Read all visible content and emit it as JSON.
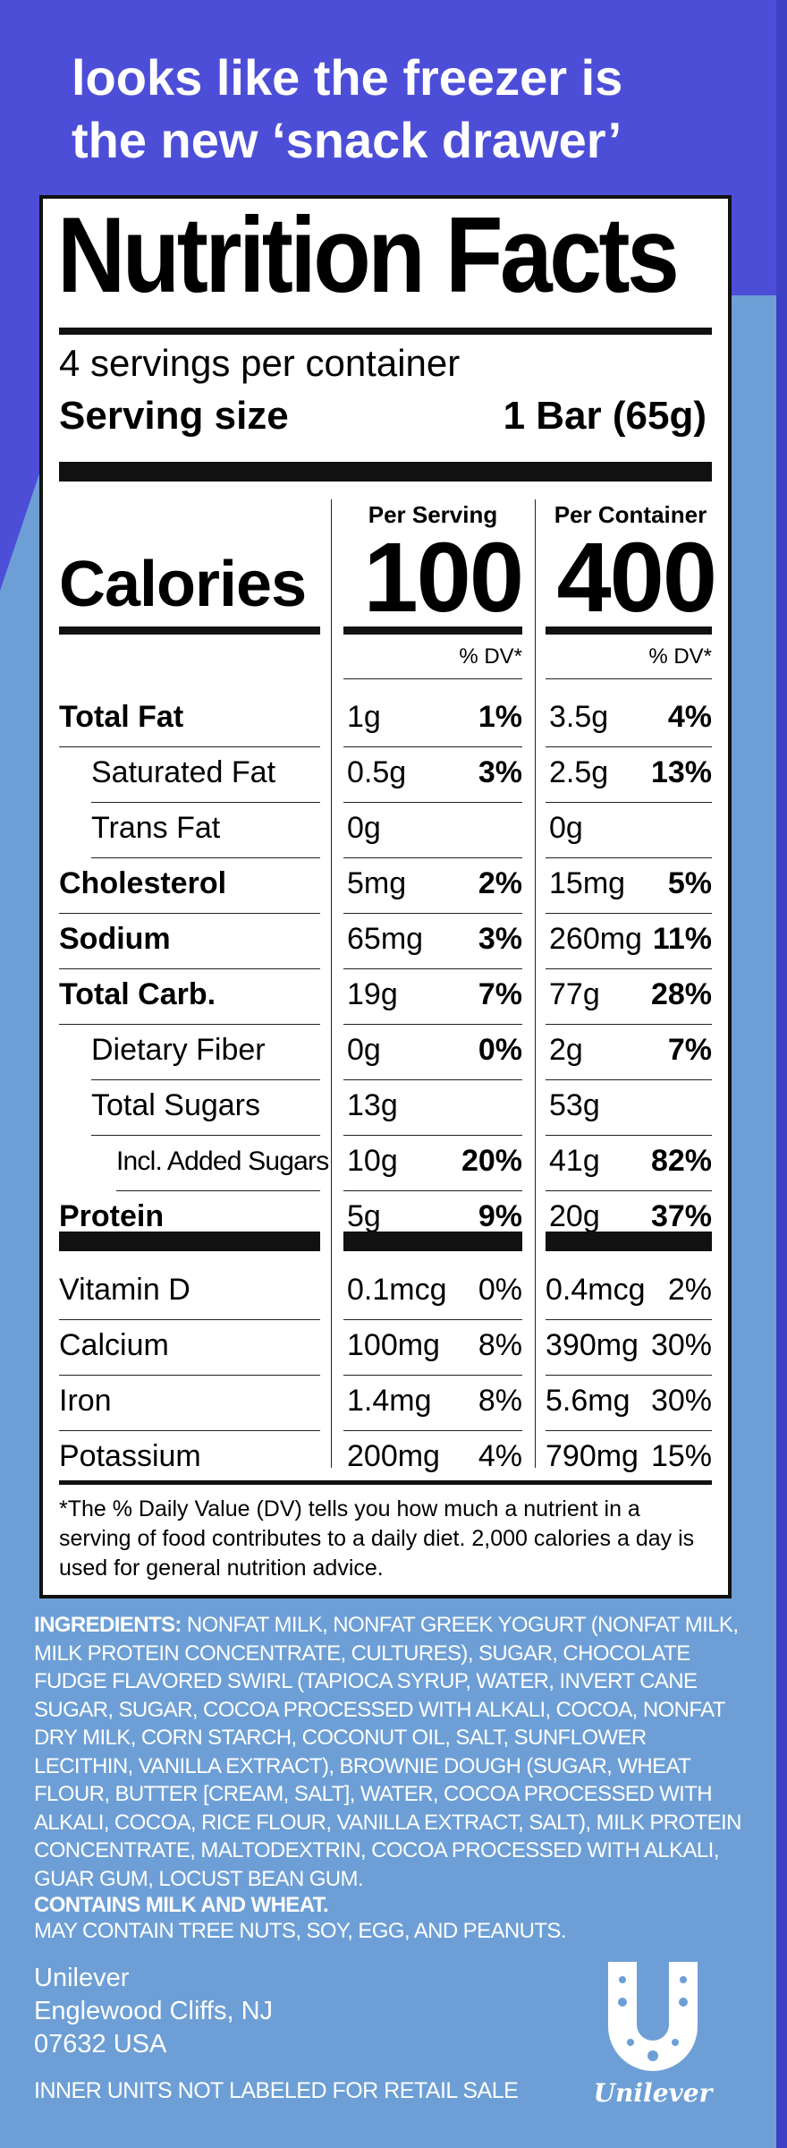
{
  "headline": [
    "looks like the freezer is",
    "the new ‘snack drawer’"
  ],
  "label": {
    "title": "Nutrition Facts",
    "servings_per_container": "4 servings per container",
    "serving_size_label": "Serving size",
    "serving_size_value": "1 Bar (65g)",
    "col_per_serving": "Per Serving",
    "col_per_container": "Per Container",
    "calories_label": "Calories",
    "calories_serving": "100",
    "calories_container": "400",
    "dv_header": "% DV*",
    "rows": [
      {
        "name": "Total Fat",
        "bold": true,
        "indent": 0,
        "a1": "1g",
        "p1": "1%",
        "a2": "3.5g",
        "p2": "4%"
      },
      {
        "name": "Saturated Fat",
        "bold": false,
        "indent": 1,
        "a1": "0.5g",
        "p1": "3%",
        "a2": "2.5g",
        "p2": "13%"
      },
      {
        "name": "Trans Fat",
        "bold": false,
        "indent": 1,
        "a1": "0g",
        "p1": "",
        "a2": "0g",
        "p2": ""
      },
      {
        "name": "Cholesterol",
        "bold": true,
        "indent": 0,
        "a1": "5mg",
        "p1": "2%",
        "a2": "15mg",
        "p2": "5%"
      },
      {
        "name": "Sodium",
        "bold": true,
        "indent": 0,
        "a1": "65mg",
        "p1": "3%",
        "a2": "260mg",
        "p2": "11%"
      },
      {
        "name": "Total Carb.",
        "bold": true,
        "indent": 0,
        "a1": "19g",
        "p1": "7%",
        "a2": "77g",
        "p2": "28%"
      },
      {
        "name": "Dietary Fiber",
        "bold": false,
        "indent": 1,
        "a1": "0g",
        "p1": "0%",
        "a2": "2g",
        "p2": "7%"
      },
      {
        "name": "Total Sugars",
        "bold": false,
        "indent": 1,
        "a1": "13g",
        "p1": "",
        "a2": "53g",
        "p2": ""
      },
      {
        "name": "Incl. Added Sugars",
        "bold": false,
        "indent": 2,
        "a1": "10g",
        "p1": "20%",
        "a2": "41g",
        "p2": "82%"
      },
      {
        "name": "Protein",
        "bold": true,
        "indent": 0,
        "a1": "5g",
        "p1": "9%",
        "a2": "20g",
        "p2": "37%"
      }
    ],
    "vitamins": [
      {
        "name": "Vitamin D",
        "a1": "0.1mcg",
        "p1": "0%",
        "a2": "0.4mcg",
        "p2": "2%"
      },
      {
        "name": "Calcium",
        "a1": "100mg",
        "p1": "8%",
        "a2": "390mg",
        "p2": "30%"
      },
      {
        "name": "Iron",
        "a1": "1.4mg",
        "p1": "8%",
        "a2": "5.6mg",
        "p2": "30%"
      },
      {
        "name": "Potassium",
        "a1": "200mg",
        "p1": "4%",
        "a2": "790mg",
        "p2": "15%"
      }
    ],
    "footnote": "*The % Daily Value (DV) tells you how much a nutrient in a serving of food contributes to a daily diet. 2,000 calories a day is used for general nutrition advice."
  },
  "ingredients": {
    "label": "INGREDIENTS:",
    "text": "NONFAT MILK, NONFAT GREEK YOGURT (NONFAT MILK, MILK PROTEIN CONCENTRATE, CULTURES), SUGAR, CHOCOLATE FUDGE FLAVORED SWIRL (TAPIOCA SYRUP, WATER, INVERT CANE SUGAR, SUGAR, COCOA PROCESSED WITH ALKALI, COCOA, NONFAT DRY MILK, CORN STARCH, COCONUT OIL, SALT, SUNFLOWER LECITHIN, VANILLA EXTRACT), BROWNIE DOUGH (SUGAR, WHEAT FLOUR, BUTTER [CREAM, SALT], WATER, COCOA PROCESSED WITH ALKALI, COCOA, RICE FLOUR, VANILLA EXTRACT, SALT), MILK PROTEIN CONCENTRATE, MALTODEXTRIN, COCOA PROCESSED WITH ALKALI, GUAR GUM, LOCUST BEAN GUM."
  },
  "allergens": {
    "contains": "CONTAINS MILK AND WHEAT.",
    "may_contain": "MAY CONTAIN TREE NUTS, SOY, EGG, AND PEANUTS."
  },
  "address": [
    "Unilever",
    "Englewood Cliffs, NJ",
    "07632 USA"
  ],
  "inner_units": "INNER UNITS NOT LABELED FOR RETAIL SALE",
  "brand": "Unilever",
  "colors": {
    "purple": "#4d4ed8",
    "blue": "#6d9fd6"
  }
}
